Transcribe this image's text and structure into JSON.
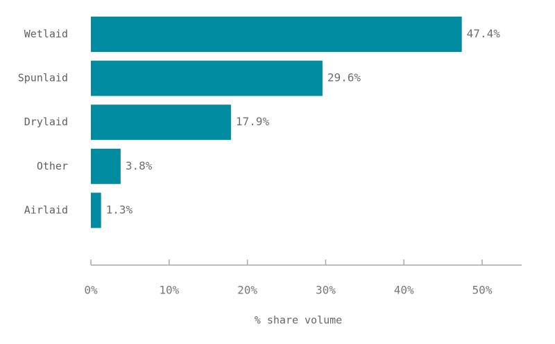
{
  "chart_data": {
    "type": "bar",
    "orientation": "horizontal",
    "categories": [
      "Wetlaid",
      "Spunlaid",
      "Drylaid",
      "Other",
      "Airlaid"
    ],
    "values": [
      47.4,
      29.6,
      17.9,
      3.8,
      1.3
    ],
    "value_labels": [
      "47.4%",
      "29.6%",
      "17.9%",
      "3.8%",
      "1.3%"
    ],
    "xlabel": "% share volume",
    "ylabel": "",
    "xlim": [
      0,
      55
    ],
    "x_ticks": [
      0,
      10,
      20,
      30,
      40,
      50
    ],
    "x_tick_labels": [
      "0%",
      "10%",
      "20%",
      "30%",
      "40%",
      "50%"
    ],
    "grid": false,
    "bar_color": "#008ba1"
  }
}
